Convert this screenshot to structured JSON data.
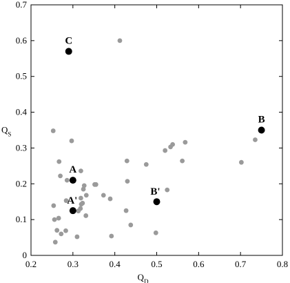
{
  "chart_data": {
    "type": "scatter",
    "title": "",
    "xlabel": "Q",
    "xlabel_sub": "D",
    "ylabel": "Q",
    "ylabel_sub": "S",
    "xlim": [
      0.2,
      0.8
    ],
    "ylim": [
      0,
      0.7
    ],
    "xticks": [
      "0.2",
      "0.3",
      "0.4",
      "0.5",
      "0.6",
      "0.7",
      "0.8"
    ],
    "yticks": [
      "0",
      "0.1",
      "0.2",
      "0.3",
      "0.4",
      "0.5",
      "0.6",
      "0.7"
    ],
    "grid": false,
    "series": [
      {
        "marker_color": "#9a9a9a",
        "points": [
          [
            0.253,
            0.348
          ],
          [
            0.254,
            0.139
          ],
          [
            0.256,
            0.1
          ],
          [
            0.258,
            0.037
          ],
          [
            0.262,
            0.07
          ],
          [
            0.266,
            0.104
          ],
          [
            0.267,
            0.262
          ],
          [
            0.27,
            0.222
          ],
          [
            0.272,
            0.06
          ],
          [
            0.283,
            0.069
          ],
          [
            0.284,
            0.153
          ],
          [
            0.286,
            0.21
          ],
          [
            0.297,
            0.32
          ],
          [
            0.31,
            0.052
          ],
          [
            0.313,
            0.124
          ],
          [
            0.318,
            0.131
          ],
          [
            0.319,
            0.236
          ],
          [
            0.319,
            0.16
          ],
          [
            0.32,
            0.143
          ],
          [
            0.323,
            0.146
          ],
          [
            0.325,
            0.185
          ],
          [
            0.327,
            0.195
          ],
          [
            0.331,
            0.111
          ],
          [
            0.332,
            0.168
          ],
          [
            0.352,
            0.198
          ],
          [
            0.355,
            0.198
          ],
          [
            0.373,
            0.168
          ],
          [
            0.389,
            0.158
          ],
          [
            0.392,
            0.054
          ],
          [
            0.412,
            0.6
          ],
          [
            0.427,
            0.125
          ],
          [
            0.429,
            0.264
          ],
          [
            0.43,
            0.207
          ],
          [
            0.438,
            0.085
          ],
          [
            0.475,
            0.254
          ],
          [
            0.498,
            0.063
          ],
          [
            0.52,
            0.293
          ],
          [
            0.525,
            0.183
          ],
          [
            0.533,
            0.303
          ],
          [
            0.538,
            0.31
          ],
          [
            0.561,
            0.264
          ],
          [
            0.568,
            0.316
          ],
          [
            0.702,
            0.26
          ],
          [
            0.735,
            0.323
          ]
        ]
      },
      {
        "marker_color": "#000000",
        "points": [
          {
            "x": 0.29,
            "y": 0.57,
            "label": "C"
          },
          {
            "x": 0.3,
            "y": 0.21,
            "label": "A"
          },
          {
            "x": 0.3,
            "y": 0.125,
            "label": "A'"
          },
          {
            "x": 0.5,
            "y": 0.15,
            "label": "B'"
          },
          {
            "x": 0.75,
            "y": 0.35,
            "label": "B"
          }
        ]
      }
    ]
  }
}
